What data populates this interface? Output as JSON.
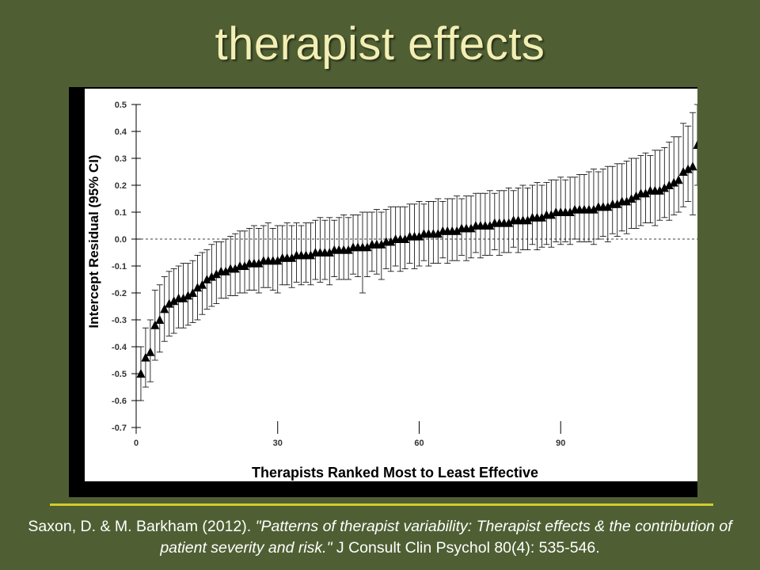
{
  "slide": {
    "title": "therapist effects",
    "citation": {
      "part1": "Saxon, D. & M. Barkham (2012). ",
      "part2": "\"Patterns of therapist variability: Therapist effects & the contribution of patient severity and risk.\"",
      "part3": " J Consult Clin Psychol 80(4): 535-546."
    }
  },
  "colors": {
    "background": "#4f5f33",
    "title": "#f3efb4",
    "rule": "#d2cc2b",
    "markers": "#000000"
  },
  "chart_data": {
    "type": "scatter",
    "xlabel": "Therapists Ranked Most to Least Effective",
    "ylabel": "Intercept Residual (95% CI)",
    "xlim": [
      0,
      119
    ],
    "ylim": [
      -0.7,
      0.5
    ],
    "xticks": [
      0,
      30,
      60,
      90
    ],
    "xtick_labels": [
      "0",
      "30",
      "60",
      "90"
    ],
    "yticks": [
      0.5,
      0.4,
      0.3,
      0.2,
      0.1,
      0.0,
      -0.1,
      -0.2,
      -0.3,
      -0.4,
      -0.5,
      -0.6,
      -0.7
    ],
    "ytick_labels": [
      "0.5",
      "0.4",
      "0.3",
      "0.2",
      "0.1",
      "0.0",
      "-0.1",
      "-0.2",
      "-0.3",
      "-0.4",
      "-0.5",
      "-0.6",
      "-0.7"
    ],
    "reference_line": {
      "y": 0.0,
      "style": "dashed"
    },
    "marker": "triangle",
    "series": [
      {
        "x": [
          1,
          2,
          3,
          4,
          5,
          6,
          7,
          8,
          9,
          10,
          11,
          12,
          13,
          14,
          15,
          16,
          17,
          18,
          19,
          20,
          21,
          22,
          23,
          24,
          25,
          26,
          27,
          28,
          29,
          30,
          31,
          32,
          33,
          34,
          35,
          36,
          37,
          38,
          39,
          40,
          41,
          42,
          43,
          44,
          45,
          46,
          47,
          48,
          49,
          50,
          51,
          52,
          53,
          54,
          55,
          56,
          57,
          58,
          59,
          60,
          61,
          62,
          63,
          64,
          65,
          66,
          67,
          68,
          69,
          70,
          71,
          72,
          73,
          74,
          75,
          76,
          77,
          78,
          79,
          80,
          81,
          82,
          83,
          84,
          85,
          86,
          87,
          88,
          89,
          90,
          91,
          92,
          93,
          94,
          95,
          96,
          97,
          98,
          99,
          100,
          101,
          102,
          103,
          104,
          105,
          106,
          107,
          108,
          109,
          110,
          111,
          112,
          113,
          114,
          115,
          116,
          117,
          118,
          119
        ],
        "y": [
          -0.5,
          -0.44,
          -0.42,
          -0.32,
          -0.3,
          -0.26,
          -0.24,
          -0.23,
          -0.22,
          -0.22,
          -0.21,
          -0.2,
          -0.18,
          -0.17,
          -0.15,
          -0.14,
          -0.13,
          -0.12,
          -0.12,
          -0.11,
          -0.11,
          -0.1,
          -0.1,
          -0.09,
          -0.09,
          -0.09,
          -0.08,
          -0.08,
          -0.08,
          -0.08,
          -0.07,
          -0.07,
          -0.07,
          -0.06,
          -0.06,
          -0.06,
          -0.06,
          -0.05,
          -0.05,
          -0.05,
          -0.05,
          -0.04,
          -0.04,
          -0.04,
          -0.04,
          -0.03,
          -0.03,
          -0.03,
          -0.03,
          -0.02,
          -0.02,
          -0.02,
          -0.01,
          -0.01,
          0.0,
          0.0,
          0.0,
          0.01,
          0.01,
          0.01,
          0.02,
          0.02,
          0.02,
          0.02,
          0.03,
          0.03,
          0.03,
          0.03,
          0.04,
          0.04,
          0.04,
          0.05,
          0.05,
          0.05,
          0.05,
          0.06,
          0.06,
          0.06,
          0.06,
          0.07,
          0.07,
          0.07,
          0.07,
          0.08,
          0.08,
          0.08,
          0.09,
          0.09,
          0.1,
          0.1,
          0.1,
          0.1,
          0.11,
          0.11,
          0.11,
          0.11,
          0.11,
          0.12,
          0.12,
          0.12,
          0.13,
          0.13,
          0.14,
          0.14,
          0.15,
          0.16,
          0.17,
          0.17,
          0.18,
          0.18,
          0.18,
          0.19,
          0.2,
          0.21,
          0.22,
          0.25,
          0.26,
          0.27,
          0.35
        ],
        "ci_low": [
          -0.6,
          -0.55,
          -0.53,
          -0.45,
          -0.42,
          -0.38,
          -0.36,
          -0.35,
          -0.33,
          -0.33,
          -0.32,
          -0.31,
          -0.3,
          -0.28,
          -0.26,
          -0.25,
          -0.24,
          -0.22,
          -0.22,
          -0.21,
          -0.21,
          -0.2,
          -0.2,
          -0.19,
          -0.19,
          -0.2,
          -0.18,
          -0.18,
          -0.19,
          -0.2,
          -0.17,
          -0.17,
          -0.18,
          -0.16,
          -0.17,
          -0.16,
          -0.17,
          -0.15,
          -0.16,
          -0.15,
          -0.17,
          -0.14,
          -0.15,
          -0.15,
          -0.15,
          -0.13,
          -0.14,
          -0.2,
          -0.14,
          -0.12,
          -0.13,
          -0.15,
          -0.11,
          -0.12,
          -0.1,
          -0.12,
          -0.11,
          -0.09,
          -0.11,
          -0.1,
          -0.08,
          -0.1,
          -0.09,
          -0.09,
          -0.07,
          -0.09,
          -0.08,
          -0.08,
          -0.06,
          -0.08,
          -0.07,
          -0.05,
          -0.07,
          -0.06,
          -0.06,
          -0.04,
          -0.06,
          -0.05,
          -0.05,
          -0.03,
          -0.05,
          -0.04,
          -0.04,
          -0.02,
          -0.04,
          -0.03,
          -0.02,
          -0.03,
          -0.01,
          -0.02,
          -0.01,
          -0.02,
          0.0,
          -0.01,
          -0.01,
          -0.01,
          -0.02,
          0.0,
          0.01,
          -0.01,
          0.02,
          0.01,
          0.03,
          0.02,
          0.04,
          0.04,
          0.05,
          0.06,
          0.06,
          0.05,
          0.07,
          0.08,
          0.07,
          0.09,
          0.1,
          0.12,
          0.14,
          0.09,
          0.2
        ],
        "ci_high": [
          -0.4,
          -0.33,
          -0.3,
          -0.19,
          -0.17,
          -0.14,
          -0.12,
          -0.11,
          -0.1,
          -0.09,
          -0.09,
          -0.08,
          -0.06,
          -0.05,
          -0.04,
          -0.02,
          -0.01,
          -0.01,
          0.0,
          0.01,
          0.02,
          0.03,
          0.03,
          0.04,
          0.05,
          0.04,
          0.05,
          0.06,
          0.04,
          0.05,
          0.05,
          0.06,
          0.05,
          0.06,
          0.05,
          0.06,
          0.06,
          0.07,
          0.08,
          0.07,
          0.08,
          0.07,
          0.08,
          0.09,
          0.08,
          0.09,
          0.09,
          0.1,
          0.1,
          0.1,
          0.11,
          0.1,
          0.11,
          0.12,
          0.12,
          0.12,
          0.12,
          0.13,
          0.13,
          0.14,
          0.13,
          0.14,
          0.14,
          0.15,
          0.14,
          0.15,
          0.15,
          0.16,
          0.15,
          0.16,
          0.16,
          0.17,
          0.17,
          0.17,
          0.18,
          0.17,
          0.18,
          0.18,
          0.19,
          0.18,
          0.19,
          0.2,
          0.19,
          0.2,
          0.21,
          0.2,
          0.21,
          0.22,
          0.22,
          0.23,
          0.22,
          0.23,
          0.23,
          0.24,
          0.24,
          0.25,
          0.26,
          0.25,
          0.26,
          0.27,
          0.27,
          0.28,
          0.28,
          0.29,
          0.3,
          0.3,
          0.31,
          0.32,
          0.31,
          0.33,
          0.33,
          0.34,
          0.36,
          0.38,
          0.38,
          0.43,
          0.42,
          0.47,
          0.5
        ]
      }
    ]
  }
}
